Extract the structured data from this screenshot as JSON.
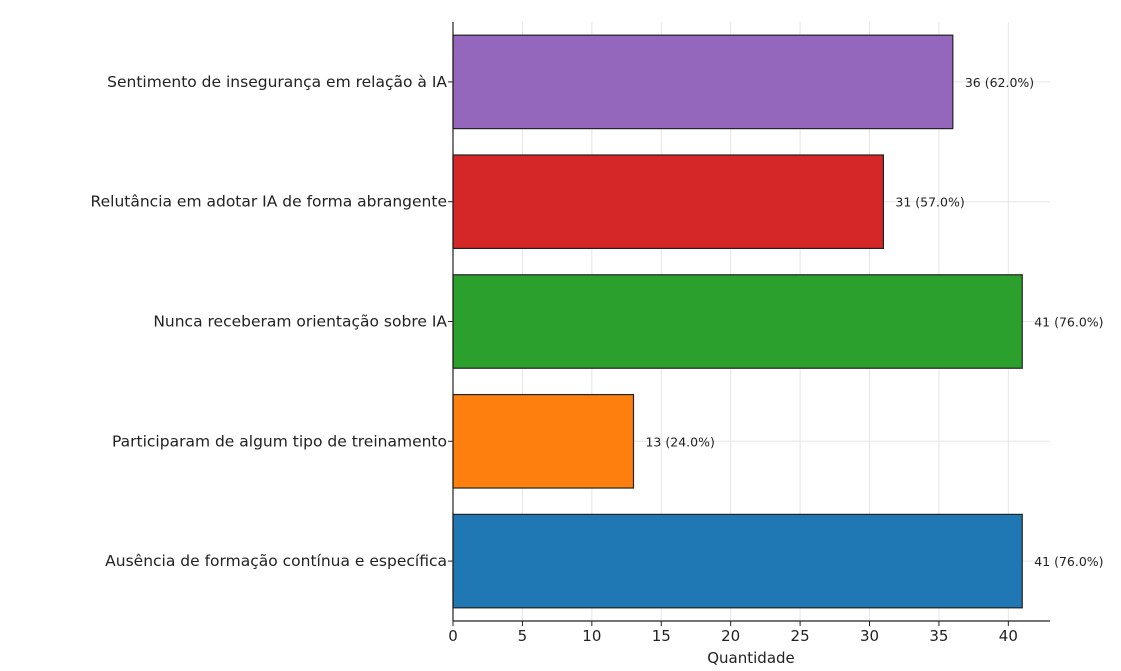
{
  "chart_data": {
    "type": "bar",
    "orientation": "horizontal",
    "categories": [
      "Sentimento de insegurança em relação à IA",
      "Relutância em adotar IA de forma abrangente",
      "Nunca receberam orientação sobre IA",
      "Participaram de algum tipo de treinamento",
      "Ausência de formação contínua e específica"
    ],
    "values": [
      36,
      31,
      41,
      13,
      41
    ],
    "value_labels": [
      "36 (62.0%)",
      "31 (57.0%)",
      "41 (76.0%)",
      "13 (24.0%)",
      "41 (76.0%)"
    ],
    "colors": [
      "#9467bd",
      "#d62728",
      "#2ca02c",
      "#ff7f0e",
      "#1f77b4"
    ],
    "title": "",
    "xlabel": "Quantidade",
    "ylabel": "",
    "xlim": [
      0,
      43
    ],
    "xticks": [
      0,
      5,
      10,
      15,
      20,
      25,
      30,
      35,
      40
    ],
    "grid": true
  }
}
